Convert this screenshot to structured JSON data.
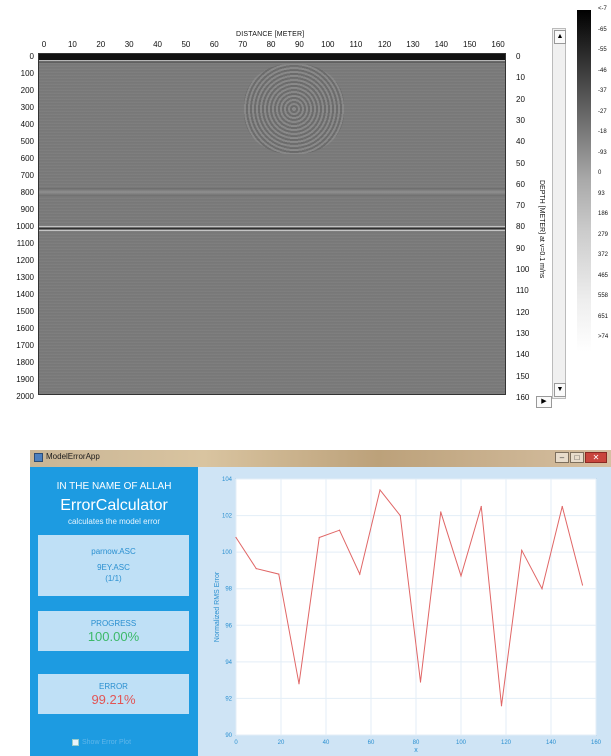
{
  "radargram": {
    "top_axis_title": "DISTANCE [METER]",
    "x_ticks": [
      "0",
      "10",
      "20",
      "30",
      "40",
      "50",
      "60",
      "70",
      "80",
      "90",
      "100",
      "110",
      "120",
      "130",
      "140",
      "150",
      "160"
    ],
    "y_ticks_left": [
      "0",
      "100",
      "200",
      "300",
      "400",
      "500",
      "600",
      "700",
      "800",
      "900",
      "1000",
      "1100",
      "1200",
      "1300",
      "1400",
      "1500",
      "1600",
      "1700",
      "1800",
      "1900",
      "2000"
    ],
    "y_ticks_right": [
      "0",
      "10",
      "20",
      "30",
      "40",
      "50",
      "60",
      "70",
      "80",
      "90",
      "100",
      "110",
      "120",
      "130",
      "140",
      "150",
      "160"
    ],
    "depth_title": "DEPTH [METER] at v=0.1 m/ns",
    "colorbar_labels": [
      "<-7",
      "-65",
      "-55",
      "-46",
      "-37",
      "-27",
      "-18",
      "-93",
      "0",
      "93",
      "186",
      "279",
      "372",
      "465",
      "558",
      "651",
      ">74"
    ]
  },
  "window": {
    "title": "ModelErrorApp",
    "controls": [
      "–",
      "□",
      "✕"
    ]
  },
  "sidebar": {
    "heading": "IN THE NAME OF ALLAH",
    "app_name": "ErrorCalculator",
    "tagline": "calculates the model error",
    "files": {
      "primary": "parnow.ASC",
      "secondary": "9EY.ASC",
      "count": "(1/1)"
    },
    "progress": {
      "label": "PROGRESS",
      "value": "100.00%"
    },
    "error": {
      "label": "ERROR",
      "value": "99.21%"
    },
    "plot_toggle_label": "Show Error Plot"
  },
  "colors": {
    "sidebar": "#1d9be1",
    "card": "#bfe0f6",
    "progress_value": "#3cb96a",
    "error_value": "#e25555",
    "line": "#e06666"
  },
  "chart_data": {
    "type": "line",
    "xlabel": "x",
    "ylabel": "Normalized RMS Error",
    "xlim": [
      0,
      160
    ],
    "ylim": [
      90,
      104
    ],
    "x_ticks": [
      0,
      20,
      40,
      60,
      80,
      100,
      120,
      140,
      160
    ],
    "y_ticks": [
      90,
      92,
      94,
      96,
      98,
      100,
      102,
      104
    ],
    "grid": true,
    "series": [
      {
        "x": [
          0,
          9,
          19,
          28,
          37,
          46,
          55,
          64,
          73,
          82,
          91,
          100,
          109,
          118,
          127,
          136,
          145,
          154
        ],
        "values": [
          100.8,
          99.1,
          98.8,
          92.8,
          100.8,
          101.2,
          98.8,
          103.4,
          102.0,
          92.9,
          102.2,
          98.7,
          102.5,
          91.6,
          100.1,
          98.0,
          102.5,
          98.2
        ]
      }
    ]
  }
}
